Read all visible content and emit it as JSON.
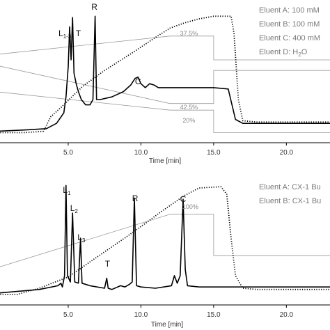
{
  "chart_data": [
    {
      "type": "line",
      "xlabel": "Time [min]",
      "x_ticks": [
        "5.0",
        "10.0",
        "15.0",
        "20.0"
      ],
      "xlim": [
        0,
        23
      ],
      "legend": [
        "Eluent A: 100 mM",
        "Eluent B: 100 mM",
        "Eluent C: 400 mM",
        "Eluent D: H2O"
      ],
      "peak_labels": [
        {
          "text": "L",
          "sub": "1-3",
          "suffix": ", T",
          "x": 5.1
        },
        {
          "text": "R",
          "x": 6.8
        },
        {
          "text": "C",
          "x": 9.8
        }
      ],
      "gradient_labels": [
        {
          "text": "37.5%",
          "x": 13.3
        },
        {
          "text": "42.5%",
          "x": 13.3
        },
        {
          "text": "20%",
          "x": 13.3
        }
      ],
      "series": [
        {
          "style": "solid",
          "points": [
            [
              0.0,
              0.06
            ],
            [
              2.0,
              0.07
            ],
            [
              3.5,
              0.08
            ],
            [
              4.2,
              0.12
            ],
            [
              4.7,
              0.2
            ],
            [
              4.85,
              0.32
            ],
            [
              5.0,
              0.55
            ],
            [
              5.1,
              0.85
            ],
            [
              5.2,
              0.6
            ],
            [
              5.3,
              0.92
            ],
            [
              5.4,
              0.5
            ],
            [
              5.55,
              0.42
            ],
            [
              5.7,
              0.36
            ],
            [
              5.9,
              0.3
            ],
            [
              6.2,
              0.26
            ],
            [
              6.5,
              0.26
            ],
            [
              6.7,
              0.3
            ],
            [
              6.85,
              0.93
            ],
            [
              6.95,
              0.3
            ],
            [
              7.2,
              0.3
            ],
            [
              8.0,
              0.32
            ],
            [
              8.8,
              0.36
            ],
            [
              9.3,
              0.41
            ],
            [
              9.6,
              0.46
            ],
            [
              9.8,
              0.47
            ],
            [
              10.0,
              0.42
            ],
            [
              10.3,
              0.39
            ],
            [
              10.6,
              0.42
            ],
            [
              10.9,
              0.41
            ],
            [
              11.2,
              0.39
            ],
            [
              12.5,
              0.39
            ],
            [
              15.0,
              0.39
            ],
            [
              16.0,
              0.38
            ],
            [
              16.5,
              0.15
            ],
            [
              17.0,
              0.12
            ],
            [
              20.0,
              0.12
            ],
            [
              23.0,
              0.12
            ]
          ]
        },
        {
          "style": "dotted",
          "points": [
            [
              0.0,
              0.05
            ],
            [
              2.0,
              0.05
            ],
            [
              3.3,
              0.06
            ],
            [
              3.8,
              0.17
            ],
            [
              4.5,
              0.24
            ],
            [
              6.0,
              0.4
            ],
            [
              7.5,
              0.52
            ],
            [
              9.5,
              0.66
            ],
            [
              11.0,
              0.77
            ],
            [
              12.0,
              0.84
            ],
            [
              13.0,
              0.88
            ],
            [
              14.0,
              0.91
            ],
            [
              15.0,
              0.93
            ],
            [
              16.2,
              0.93
            ],
            [
              16.4,
              0.8
            ],
            [
              16.7,
              0.3
            ],
            [
              17.0,
              0.14
            ],
            [
              18.0,
              0.13
            ],
            [
              23.0,
              0.13
            ]
          ]
        },
        {
          "style": "gradient",
          "points": [
            [
              0.0,
              0.64
            ],
            [
              12.0,
              0.78
            ],
            [
              15.0,
              0.78
            ],
            [
              15.0,
              0.6
            ],
            [
              23.0,
              0.6
            ]
          ]
        },
        {
          "style": "gradient",
          "points": [
            [
              0.0,
              0.56
            ],
            [
              12.0,
              0.27
            ],
            [
              15.0,
              0.27
            ],
            [
              15.0,
              0.52
            ],
            [
              23.0,
              0.52
            ]
          ]
        },
        {
          "style": "gradient",
          "points": [
            [
              0.0,
              0.36
            ],
            [
              12.0,
              0.22
            ],
            [
              15.0,
              0.22
            ],
            [
              15.0,
              0.05
            ],
            [
              23.0,
              0.05
            ]
          ]
        }
      ]
    },
    {
      "type": "line",
      "xlabel": "Time [min]",
      "x_ticks": [
        "5.0",
        "10.0",
        "15.0",
        "20.0"
      ],
      "xlim": [
        0,
        23
      ],
      "legend": [
        "Eluent A: CX-1 Bu",
        "Eluent B: CX-1 Bu"
      ],
      "peak_labels": [
        {
          "text": "L",
          "sub": "1",
          "x": 4.9
        },
        {
          "text": "L",
          "sub": "2",
          "x": 5.4
        },
        {
          "text": "L",
          "sub": "3",
          "x": 5.9
        },
        {
          "text": "T",
          "x": 7.7
        },
        {
          "text": "R",
          "x": 9.6
        },
        {
          "text": "C",
          "x": 12.9
        }
      ],
      "gradient_labels": [
        {
          "text": "100%",
          "x": 13.4
        }
      ],
      "series": [
        {
          "style": "solid",
          "points": [
            [
              0.0,
              0.06
            ],
            [
              3.0,
              0.09
            ],
            [
              4.3,
              0.12
            ],
            [
              4.5,
              0.14
            ],
            [
              4.6,
              0.11
            ],
            [
              4.75,
              0.2
            ],
            [
              4.85,
              0.92
            ],
            [
              4.95,
              0.2
            ],
            [
              5.15,
              0.15
            ],
            [
              5.3,
              0.7
            ],
            [
              5.45,
              0.15
            ],
            [
              5.7,
              0.14
            ],
            [
              5.85,
              0.5
            ],
            [
              5.95,
              0.14
            ],
            [
              6.5,
              0.12
            ],
            [
              7.5,
              0.1
            ],
            [
              7.65,
              0.18
            ],
            [
              7.75,
              0.1
            ],
            [
              8.0,
              0.09
            ],
            [
              8.6,
              0.12
            ],
            [
              8.9,
              0.11
            ],
            [
              9.2,
              0.13
            ],
            [
              9.4,
              0.15
            ],
            [
              9.55,
              0.82
            ],
            [
              9.7,
              0.12
            ],
            [
              10.0,
              0.11
            ],
            [
              11.0,
              0.1
            ],
            [
              12.1,
              0.12
            ],
            [
              12.3,
              0.2
            ],
            [
              12.5,
              0.14
            ],
            [
              12.7,
              0.2
            ],
            [
              12.9,
              0.81
            ],
            [
              13.05,
              0.25
            ],
            [
              13.2,
              0.12
            ],
            [
              14.0,
              0.11
            ],
            [
              23.0,
              0.11
            ]
          ]
        },
        {
          "style": "dotted",
          "points": [
            [
              0.0,
              0.05
            ],
            [
              1.5,
              0.05
            ],
            [
              3.0,
              0.1
            ],
            [
              5.0,
              0.19
            ],
            [
              7.0,
              0.35
            ],
            [
              9.5,
              0.55
            ],
            [
              11.5,
              0.72
            ],
            [
              13.0,
              0.84
            ],
            [
              14.0,
              0.9
            ],
            [
              15.5,
              0.91
            ],
            [
              15.9,
              0.85
            ],
            [
              16.2,
              0.5
            ],
            [
              16.5,
              0.2
            ],
            [
              17.0,
              0.1
            ],
            [
              18.0,
              0.09
            ],
            [
              23.0,
              0.09
            ]
          ]
        },
        {
          "style": "gradient",
          "points": [
            [
              0.0,
              0.26
            ],
            [
              12.0,
              0.69
            ],
            [
              15.0,
              0.69
            ],
            [
              15.0,
              0.36
            ],
            [
              23.0,
              0.36
            ]
          ]
        }
      ]
    }
  ]
}
